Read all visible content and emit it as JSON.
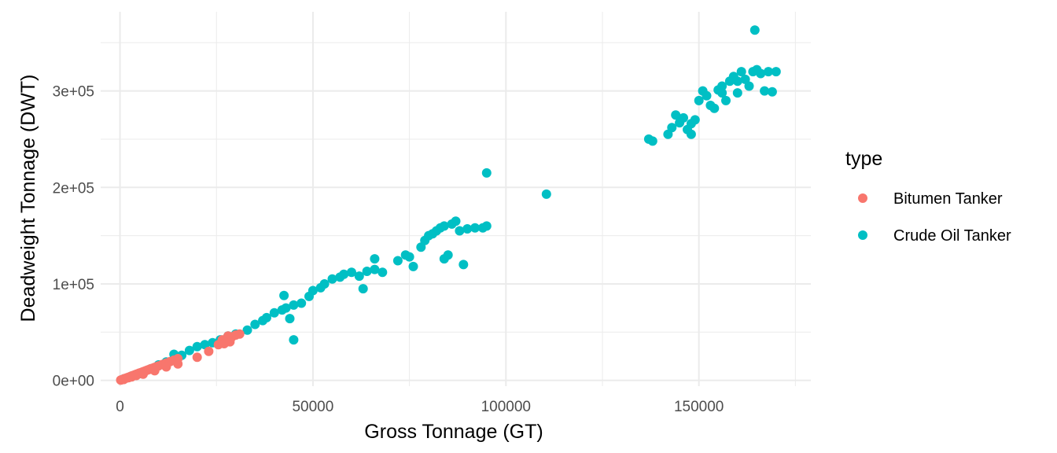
{
  "chart_data": {
    "type": "scatter",
    "title": "",
    "xlabel": "Gross Tonnage (GT)",
    "ylabel": "Deadweight Tonnage (DWT)",
    "xlim": [
      -5000,
      179000
    ],
    "ylim": [
      -6000,
      382000
    ],
    "x_ticks": [
      0,
      50000,
      100000,
      150000
    ],
    "x_tick_labels": [
      "0",
      "50000",
      "100000",
      "150000"
    ],
    "y_ticks": [
      0,
      100000,
      200000,
      300000
    ],
    "y_tick_labels": [
      "0e+00",
      "1e+05",
      "2e+05",
      "3e+05"
    ],
    "grid": true,
    "legend": {
      "title": "type",
      "position": "right"
    },
    "series": [
      {
        "name": "Bitumen Tanker",
        "color": "#F8766D",
        "points": [
          [
            200,
            300
          ],
          [
            500,
            700
          ],
          [
            800,
            1200
          ],
          [
            1200,
            1800
          ],
          [
            1600,
            2400
          ],
          [
            2000,
            3000
          ],
          [
            2500,
            3700
          ],
          [
            3000,
            4500
          ],
          [
            3500,
            5200
          ],
          [
            4000,
            6000
          ],
          [
            4500,
            6700
          ],
          [
            5000,
            7500
          ],
          [
            5500,
            8200
          ],
          [
            6000,
            9000
          ],
          [
            6500,
            9700
          ],
          [
            7000,
            10500
          ],
          [
            7500,
            11200
          ],
          [
            8000,
            12000
          ],
          [
            8500,
            12700
          ],
          [
            9000,
            13500
          ],
          [
            9500,
            14200
          ],
          [
            10000,
            15000
          ],
          [
            11000,
            16500
          ],
          [
            12000,
            18000
          ],
          [
            13000,
            19500
          ],
          [
            14000,
            21000
          ],
          [
            15000,
            22500
          ],
          [
            20000,
            24000
          ],
          [
            23000,
            30000
          ],
          [
            25500,
            37000
          ],
          [
            26500,
            42000
          ],
          [
            27000,
            38000
          ],
          [
            28000,
            46000
          ],
          [
            28500,
            40000
          ],
          [
            29000,
            45000
          ],
          [
            30000,
            47000
          ],
          [
            31000,
            48000
          ],
          [
            3000,
            3500
          ],
          [
            6000,
            6500
          ],
          [
            9000,
            10000
          ],
          [
            12000,
            14000
          ],
          [
            15000,
            17000
          ],
          [
            1000,
            900
          ],
          [
            2200,
            2800
          ],
          [
            4200,
            5000
          ]
        ]
      },
      {
        "name": "Crude Oil Tanker",
        "color": "#00BFC4",
        "points": [
          [
            1000,
            1500
          ],
          [
            3000,
            4500
          ],
          [
            5000,
            7000
          ],
          [
            8000,
            12000
          ],
          [
            10000,
            16000
          ],
          [
            12000,
            19000
          ],
          [
            14000,
            22000
          ],
          [
            14000,
            27000
          ],
          [
            16000,
            26000
          ],
          [
            18000,
            31000
          ],
          [
            20000,
            35000
          ],
          [
            22000,
            37000
          ],
          [
            24000,
            39000
          ],
          [
            26000,
            42000
          ],
          [
            28000,
            46000
          ],
          [
            30000,
            48000
          ],
          [
            33000,
            52000
          ],
          [
            35000,
            58000
          ],
          [
            37000,
            62000
          ],
          [
            38000,
            65000
          ],
          [
            40000,
            70000
          ],
          [
            42000,
            73000
          ],
          [
            42500,
            88000
          ],
          [
            43000,
            75000
          ],
          [
            44000,
            64000
          ],
          [
            45000,
            78000
          ],
          [
            45000,
            42000
          ],
          [
            47000,
            80000
          ],
          [
            49000,
            87000
          ],
          [
            50000,
            93000
          ],
          [
            52000,
            96000
          ],
          [
            53000,
            100000
          ],
          [
            55000,
            105000
          ],
          [
            57000,
            107000
          ],
          [
            58000,
            110000
          ],
          [
            60000,
            112000
          ],
          [
            62000,
            108000
          ],
          [
            63000,
            95000
          ],
          [
            64000,
            113000
          ],
          [
            66000,
            115000
          ],
          [
            66000,
            126000
          ],
          [
            68000,
            112000
          ],
          [
            72000,
            124000
          ],
          [
            74000,
            130000
          ],
          [
            75000,
            128000
          ],
          [
            76000,
            118000
          ],
          [
            78000,
            138000
          ],
          [
            79000,
            145000
          ],
          [
            80000,
            150000
          ],
          [
            81000,
            152000
          ],
          [
            82000,
            155000
          ],
          [
            83000,
            158000
          ],
          [
            84000,
            160000
          ],
          [
            84000,
            126000
          ],
          [
            85000,
            130000
          ],
          [
            86000,
            162000
          ],
          [
            87000,
            165000
          ],
          [
            88000,
            155000
          ],
          [
            89000,
            120000
          ],
          [
            90000,
            157000
          ],
          [
            92000,
            158000
          ],
          [
            94000,
            158000
          ],
          [
            95000,
            160000
          ],
          [
            95000,
            215000
          ],
          [
            110500,
            193000
          ],
          [
            137000,
            250000
          ],
          [
            138000,
            248000
          ],
          [
            142000,
            255000
          ],
          [
            143000,
            262000
          ],
          [
            144000,
            275000
          ],
          [
            145000,
            267000
          ],
          [
            146000,
            272000
          ],
          [
            147000,
            260000
          ],
          [
            148000,
            266000
          ],
          [
            149000,
            270000
          ],
          [
            150000,
            290000
          ],
          [
            151000,
            300000
          ],
          [
            152000,
            295000
          ],
          [
            153000,
            285000
          ],
          [
            155000,
            301000
          ],
          [
            156000,
            305000
          ],
          [
            157000,
            290000
          ],
          [
            158000,
            310000
          ],
          [
            159000,
            315000
          ],
          [
            160000,
            298000
          ],
          [
            161000,
            320000
          ],
          [
            162000,
            312000
          ],
          [
            163000,
            305000
          ],
          [
            164000,
            320000
          ],
          [
            164500,
            363000
          ],
          [
            165000,
            322000
          ],
          [
            166000,
            318000
          ],
          [
            167000,
            300000
          ],
          [
            168000,
            320000
          ],
          [
            169000,
            299000
          ],
          [
            170000,
            320000
          ],
          [
            154000,
            282000
          ],
          [
            148000,
            255000
          ],
          [
            156000,
            298000
          ],
          [
            160000,
            310000
          ]
        ]
      }
    ]
  }
}
